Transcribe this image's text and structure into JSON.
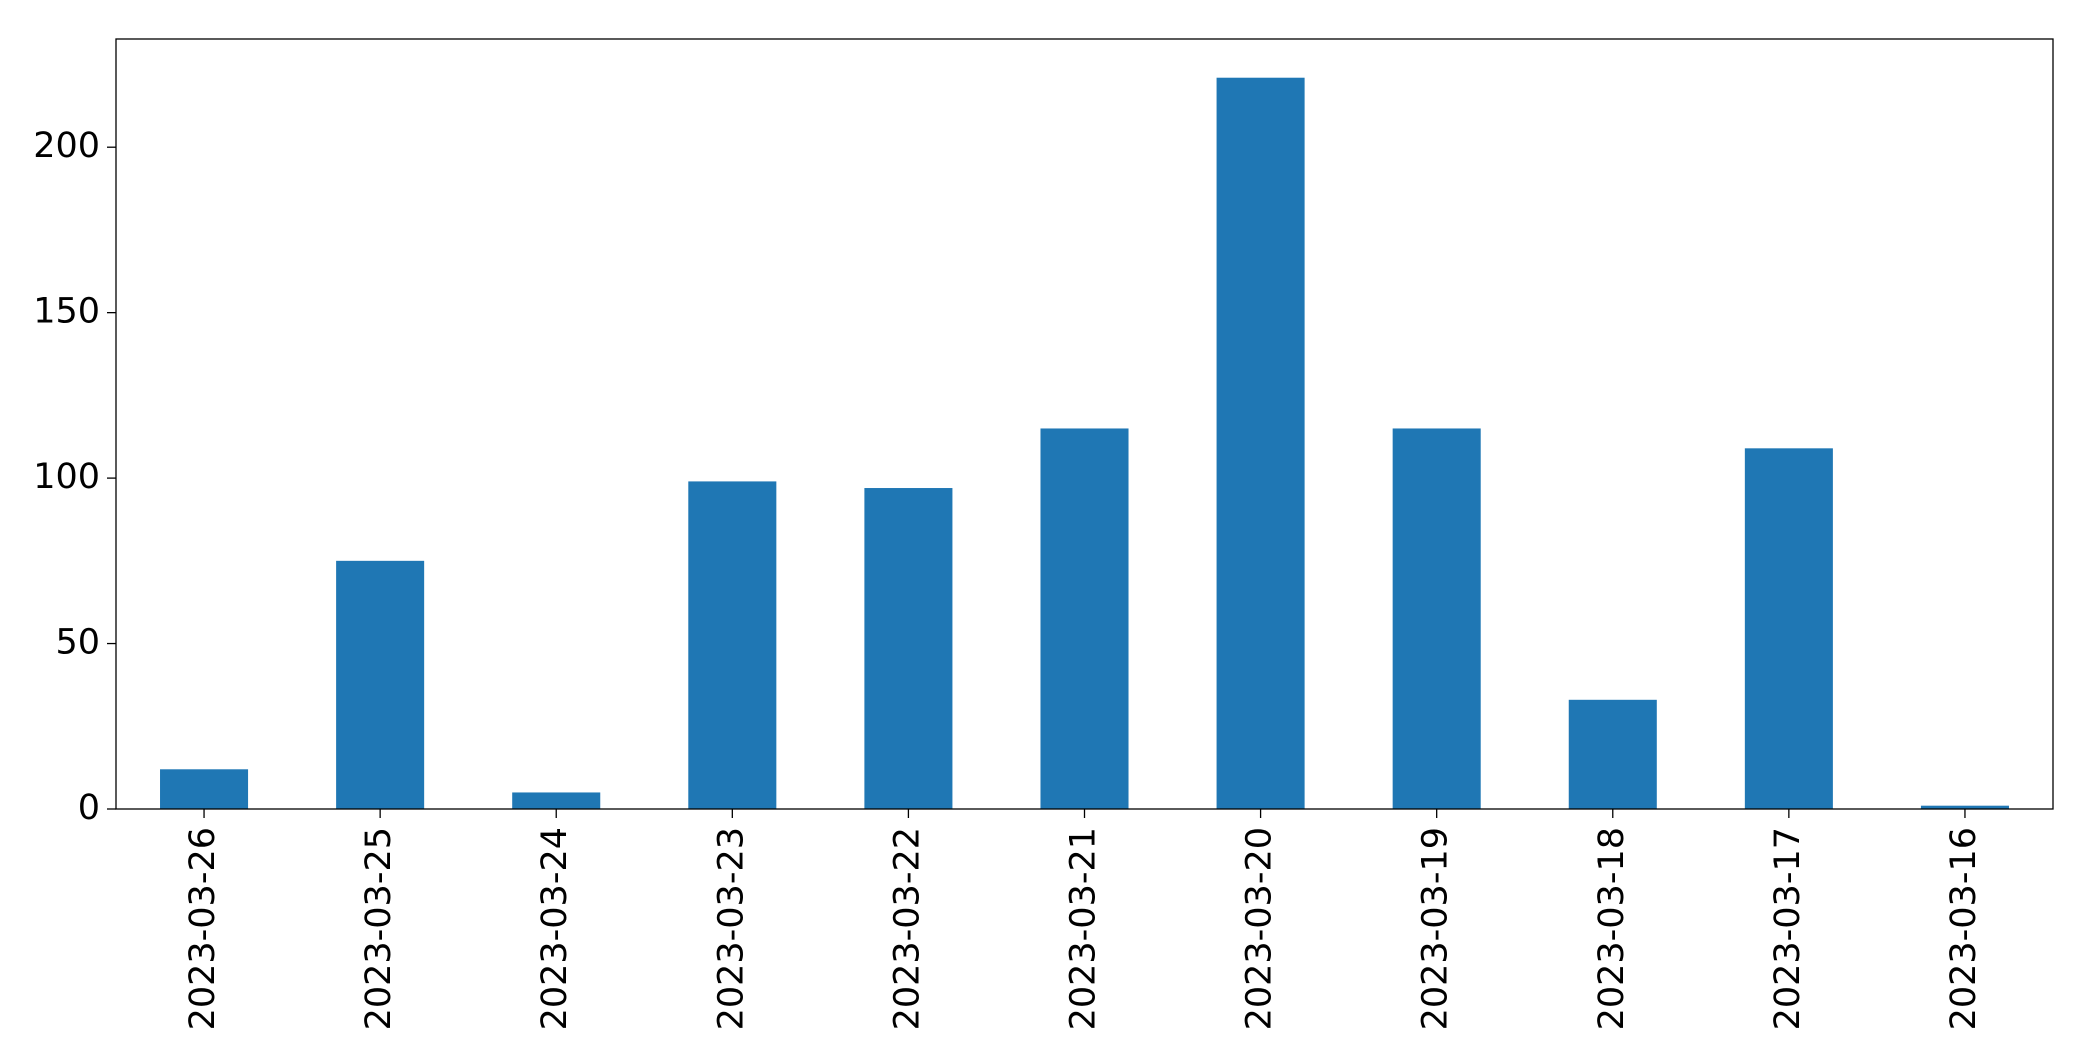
{
  "chart_data": {
    "type": "bar",
    "categories": [
      "2023-03-26",
      "2023-03-25",
      "2023-03-24",
      "2023-03-23",
      "2023-03-22",
      "2023-03-21",
      "2023-03-20",
      "2023-03-19",
      "2023-03-18",
      "2023-03-17",
      "2023-03-16"
    ],
    "values": [
      12,
      75,
      5,
      99,
      97,
      115,
      221,
      115,
      33,
      109,
      1
    ],
    "color": "#1f77b4",
    "ylim": [
      0,
      232.7
    ],
    "yticks": [
      0,
      50,
      100,
      150,
      200
    ],
    "grid": false
  }
}
